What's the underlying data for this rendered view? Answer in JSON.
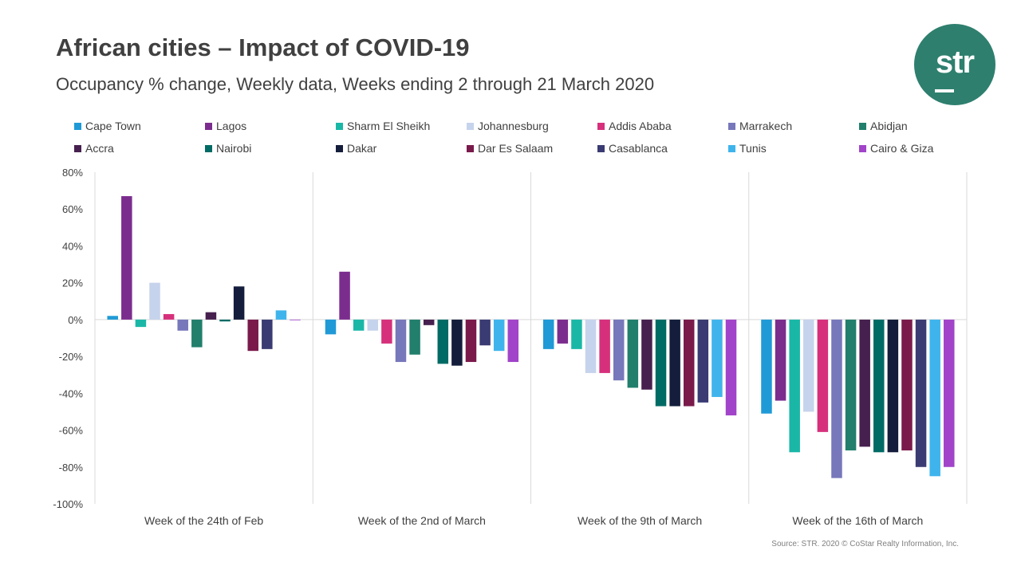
{
  "header": {
    "title": "African cities – Impact of COVID-19",
    "subtitle": "Occupancy % change, Weekly data, Weeks ending 2 through 21 March 2020"
  },
  "logo": {
    "text": "str"
  },
  "source": "Source: STR. 2020 © CoStar Realty Information, Inc.",
  "chart_data": {
    "type": "bar",
    "title": "African cities – Impact of COVID-19",
    "ylabel": "",
    "xlabel": "",
    "ylim": [
      -100,
      80
    ],
    "yticks": [
      80,
      60,
      40,
      20,
      0,
      -20,
      -40,
      -60,
      -80,
      -100
    ],
    "ytick_labels": [
      "80%",
      "60%",
      "40%",
      "20%",
      "0%",
      "-20%",
      "-40%",
      "-60%",
      "-80%",
      "-100%"
    ],
    "legend_position": "top",
    "categories": [
      "Week of the 24th of Feb",
      "Week of the 2nd of March",
      "Week of the 9th of March",
      "Week of the 16th of March"
    ],
    "series": [
      {
        "name": "Cape Town",
        "color": "#1f9ad6",
        "values": [
          2,
          -8,
          -16,
          -51
        ]
      },
      {
        "name": "Lagos",
        "color": "#7b2d8e",
        "values": [
          67,
          26,
          -13,
          -44
        ]
      },
      {
        "name": "Sharm El Sheikh",
        "color": "#1ab7a7",
        "values": [
          -4,
          -6,
          -16,
          -72
        ]
      },
      {
        "name": "Johannesburg",
        "color": "#c6d3ec",
        "values": [
          20,
          -6,
          -29,
          -50
        ]
      },
      {
        "name": "Addis Ababa",
        "color": "#d6307c",
        "values": [
          3,
          -13,
          -29,
          -61
        ]
      },
      {
        "name": "Marrakech",
        "color": "#7777bb",
        "values": [
          -6,
          -23,
          -33,
          -86
        ]
      },
      {
        "name": "Abidjan",
        "color": "#217f6c",
        "values": [
          -15,
          -19,
          -37,
          -71
        ]
      },
      {
        "name": "Accra",
        "color": "#46204e",
        "values": [
          4,
          -3,
          -38,
          -69
        ]
      },
      {
        "name": "Nairobi",
        "color": "#006b65",
        "values": [
          -1,
          -24,
          -47,
          -72
        ]
      },
      {
        "name": "Dakar",
        "color": "#141d3b",
        "values": [
          18,
          -25,
          -47,
          -72
        ]
      },
      {
        "name": "Dar Es Salaam",
        "color": "#7a1a4b",
        "values": [
          -17,
          -23,
          -47,
          -71
        ]
      },
      {
        "name": "Casablanca",
        "color": "#3a3b72",
        "values": [
          -16,
          -14,
          -45,
          -80
        ]
      },
      {
        "name": "Tunis",
        "color": "#3fb4ec",
        "values": [
          5,
          -17,
          -42,
          -85
        ]
      },
      {
        "name": "Cairo & Giza",
        "color": "#a144c9",
        "values": [
          0,
          -23,
          -52,
          -80
        ]
      }
    ]
  }
}
